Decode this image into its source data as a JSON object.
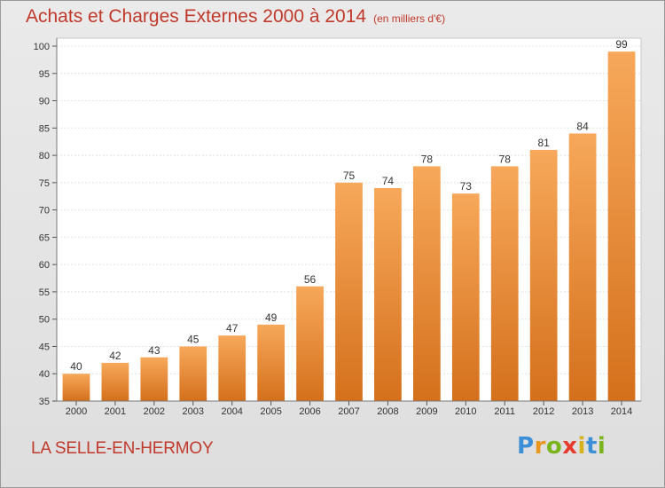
{
  "chart_data": {
    "type": "bar",
    "title": "Achats et Charges Externes 2000 à 2014",
    "subtitle": "(en milliers d'€)",
    "xlabel": "",
    "ylabel": "",
    "categories": [
      "2000",
      "2001",
      "2002",
      "2003",
      "2004",
      "2005",
      "2006",
      "2007",
      "2008",
      "2009",
      "2010",
      "2011",
      "2012",
      "2013",
      "2014"
    ],
    "values": [
      40,
      42,
      43,
      45,
      47,
      49,
      56,
      75,
      74,
      78,
      73,
      78,
      81,
      84,
      99
    ],
    "ylim": [
      35,
      100
    ],
    "yticks": [
      35,
      40,
      45,
      50,
      55,
      60,
      65,
      70,
      75,
      80,
      85,
      90,
      95,
      100
    ],
    "grid": true,
    "legend": "none",
    "bar_color_light": "#f7a85a",
    "bar_color_dark": "#d4701c"
  },
  "footer": {
    "city": "LA SELLE-EN-HERMOY",
    "logo_letters": [
      "P",
      "r",
      "o",
      "x",
      "i",
      "t",
      "i"
    ],
    "logo_colors": [
      "#3a8fd6",
      "#e8961e",
      "#7ab51d",
      "#e63b2e",
      "#d6b21d",
      "#3a8fd6",
      "#7ab51d"
    ]
  }
}
